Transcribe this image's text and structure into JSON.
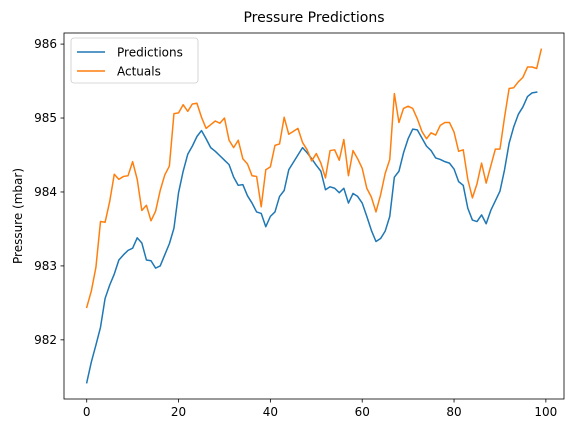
{
  "chart_data": {
    "type": "line",
    "title": "Pressure Predictions",
    "xlabel": "",
    "ylabel": "Pressure (mbar)",
    "xlim": [
      -4.95,
      103.95
    ],
    "ylim": [
      981.2,
      986.15
    ],
    "xticks": [
      0,
      20,
      40,
      60,
      80,
      100
    ],
    "yticks": [
      982,
      983,
      984,
      985,
      986
    ],
    "legend": "top-left",
    "grid": false,
    "series": [
      {
        "name": "Predictions",
        "color": "#1f77b4",
        "values": [
          981.42,
          981.7,
          981.93,
          982.17,
          982.56,
          982.74,
          982.89,
          983.08,
          983.15,
          983.21,
          983.24,
          983.38,
          983.31,
          983.08,
          983.07,
          982.97,
          983.0,
          983.15,
          983.3,
          983.51,
          983.99,
          984.28,
          984.51,
          984.62,
          984.75,
          984.83,
          984.72,
          984.6,
          984.55,
          984.49,
          984.43,
          984.37,
          984.2,
          984.09,
          984.1,
          983.95,
          983.85,
          983.73,
          983.71,
          983.53,
          983.67,
          983.73,
          983.94,
          984.02,
          984.3,
          984.4,
          984.5,
          984.6,
          984.53,
          984.45,
          984.36,
          984.28,
          984.03,
          984.07,
          984.05,
          983.99,
          984.05,
          983.85,
          983.98,
          983.94,
          983.85,
          983.67,
          983.48,
          983.33,
          983.37,
          983.47,
          983.67,
          984.2,
          984.28,
          984.53,
          984.72,
          984.85,
          984.84,
          984.73,
          984.62,
          984.56,
          984.46,
          984.44,
          984.41,
          984.39,
          984.31,
          984.14,
          984.09,
          983.78,
          983.62,
          983.6,
          983.69,
          983.57,
          983.75,
          983.88,
          984.01,
          984.3,
          984.66,
          984.88,
          985.05,
          985.15,
          985.29,
          985.34,
          985.35
        ]
      },
      {
        "name": "Actuals",
        "color": "#ff7f0e",
        "values": [
          982.44,
          982.66,
          982.98,
          983.6,
          983.59,
          983.87,
          984.24,
          984.17,
          984.21,
          984.22,
          984.41,
          984.17,
          983.75,
          983.82,
          983.61,
          983.74,
          984.02,
          984.23,
          984.35,
          985.06,
          985.07,
          985.18,
          985.09,
          985.19,
          985.2,
          985.01,
          984.86,
          984.91,
          984.96,
          984.93,
          985.0,
          984.7,
          984.6,
          984.7,
          984.45,
          984.38,
          984.22,
          984.21,
          983.8,
          984.3,
          984.34,
          984.63,
          984.65,
          985.01,
          984.78,
          984.82,
          984.86,
          984.67,
          984.57,
          984.42,
          984.52,
          984.39,
          984.19,
          984.56,
          984.57,
          984.43,
          984.71,
          984.22,
          984.56,
          984.45,
          984.32,
          984.05,
          983.93,
          983.73,
          983.96,
          984.25,
          984.44,
          985.33,
          984.94,
          985.13,
          985.16,
          985.13,
          984.99,
          984.82,
          984.72,
          984.8,
          984.77,
          984.9,
          984.94,
          984.94,
          984.81,
          984.55,
          984.57,
          984.17,
          983.92,
          984.11,
          984.39,
          984.12,
          984.35,
          984.58,
          984.58,
          985.01,
          985.4,
          985.41,
          985.49,
          985.55,
          985.69,
          985.69,
          985.67,
          985.93
        ]
      }
    ]
  }
}
